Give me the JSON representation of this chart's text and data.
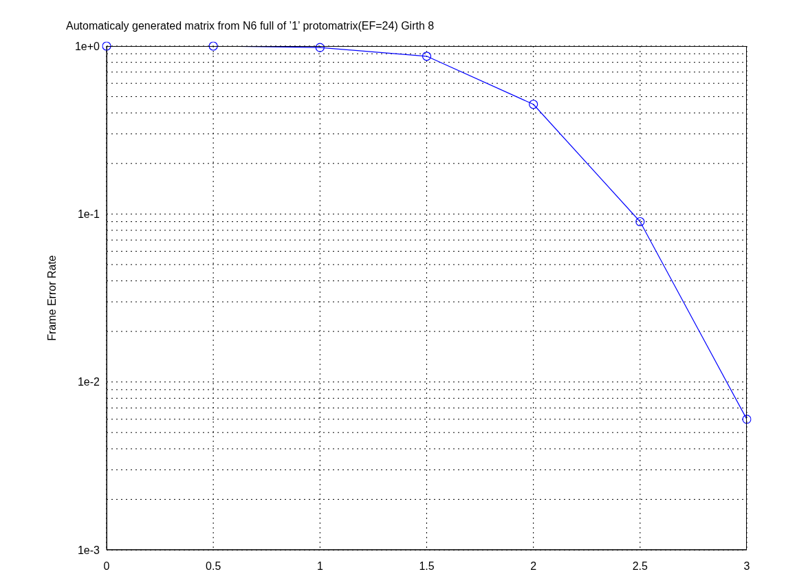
{
  "chart_data": {
    "type": "line",
    "title": "Automaticaly generated matrix from N6 full of ’1’ protomatrix(EF=24) Girth 8",
    "ylabel": "Frame Error Rate",
    "x": [
      0,
      0.5,
      1,
      1.5,
      2,
      2.5,
      3
    ],
    "series": [
      {
        "color": "#0000ff",
        "values": [
          1,
          1,
          0.98,
          0.87,
          0.45,
          0.09,
          0.006
        ]
      }
    ],
    "xlim": [
      0,
      3
    ],
    "xticks": [
      0,
      0.5,
      1,
      1.5,
      2,
      2.5,
      3
    ],
    "ylim": [
      0.001,
      1
    ],
    "yticks": [
      {
        "value": 1,
        "label": "1e+0"
      },
      {
        "value": 0.9,
        "label": null
      },
      {
        "value": 0.8,
        "label": null
      },
      {
        "value": 0.7,
        "label": null
      },
      {
        "value": 0.6,
        "label": null
      },
      {
        "value": 0.5,
        "label": null
      },
      {
        "value": 0.4,
        "label": null
      },
      {
        "value": 0.3,
        "label": null
      },
      {
        "value": 0.2,
        "label": null
      },
      {
        "value": 0.1,
        "label": "1e-1"
      },
      {
        "value": 0.09,
        "label": null
      },
      {
        "value": 0.08,
        "label": null
      },
      {
        "value": 0.07,
        "label": null
      },
      {
        "value": 0.06,
        "label": null
      },
      {
        "value": 0.05,
        "label": null
      },
      {
        "value": 0.04,
        "label": null
      },
      {
        "value": 0.03,
        "label": null
      },
      {
        "value": 0.02,
        "label": null
      },
      {
        "value": 0.01,
        "label": "1e-2"
      },
      {
        "value": 0.009,
        "label": null
      },
      {
        "value": 0.008,
        "label": null
      },
      {
        "value": 0.007,
        "label": null
      },
      {
        "value": 0.006,
        "label": null
      },
      {
        "value": 0.005,
        "label": null
      },
      {
        "value": 0.004,
        "label": null
      },
      {
        "value": 0.003,
        "label": null
      },
      {
        "value": 0.002,
        "label": null
      },
      {
        "value": 0.001,
        "label": "1e-3"
      }
    ],
    "log": "y",
    "grid": true,
    "marker": "circle",
    "line_style": "solid"
  }
}
